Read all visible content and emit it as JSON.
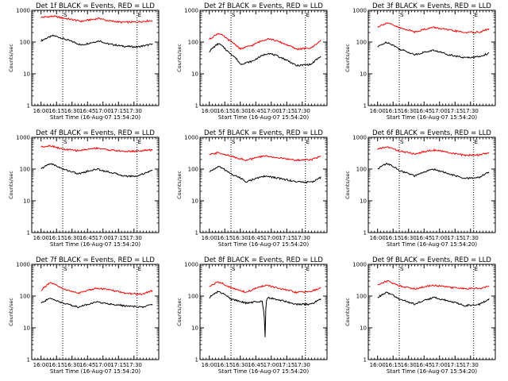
{
  "colors": {
    "events": "#000000",
    "lld": "#ff0000",
    "axes": "#000000",
    "background": "#ffffff"
  },
  "chart_data": [
    {
      "type": "line",
      "title": "Det 1f BLACK = Events, RED = LLD",
      "xlabel": "Start Time (16-Aug-07 15:54:20)",
      "ylabel": "Counts/sec",
      "y_scale": "log",
      "ylim": [
        1,
        1000
      ],
      "y_ticks": [
        "1",
        "10",
        "100",
        "1000"
      ],
      "x_ticks": [
        "16:00",
        "16:15",
        "16:30",
        "16:45",
        "17:00",
        "17:15",
        "17:30"
      ],
      "xlim": [
        -3,
        38
      ],
      "markers": [
        {
          "x": 7,
          "label": "S"
        },
        {
          "x": 31,
          "label": "E"
        }
      ],
      "series": [
        {
          "x": [
            0,
            4,
            8,
            13,
            19,
            21,
            26,
            31,
            36
          ],
          "y": [
            110,
            160,
            120,
            80,
            110,
            90,
            75,
            70,
            85
          ]
        },
        {
          "x": [
            0,
            4,
            8,
            13,
            19,
            21,
            26,
            31,
            36
          ],
          "y": [
            600,
            650,
            550,
            450,
            560,
            480,
            420,
            430,
            480
          ]
        }
      ]
    },
    {
      "type": "line",
      "title": "Det 2f BLACK = Events, RED = LLD",
      "xlabel": "Start Time (16-Aug-07 15:54:20)",
      "ylabel": "Counts/sec",
      "y_scale": "log",
      "ylim": [
        1,
        1000
      ],
      "y_ticks": [
        "1",
        "10",
        "100",
        "1000"
      ],
      "x_ticks": [
        "16:00",
        "16:15",
        "16:30",
        "16:45",
        "17:00",
        "17:15",
        "17:30"
      ],
      "xlim": [
        -3,
        38
      ],
      "markers": [
        {
          "x": 7,
          "label": "S"
        },
        {
          "x": 31,
          "label": "E"
        }
      ],
      "series": [
        {
          "x": [
            0,
            3,
            6,
            10,
            14,
            19,
            24,
            28,
            33,
            36
          ],
          "y": [
            50,
            90,
            50,
            20,
            25,
            45,
            30,
            18,
            20,
            35
          ]
        },
        {
          "x": [
            0,
            3,
            6,
            10,
            14,
            19,
            24,
            28,
            33,
            36
          ],
          "y": [
            120,
            190,
            120,
            60,
            80,
            130,
            90,
            60,
            65,
            110
          ]
        }
      ]
    },
    {
      "type": "line",
      "title": "Det 3f BLACK = Events, RED = LLD",
      "xlabel": "Start Time (16-Aug-07 15:54:20)",
      "ylabel": "Counts/sec",
      "y_scale": "log",
      "ylim": [
        1,
        1000
      ],
      "y_ticks": [
        "1",
        "10",
        "100",
        "1000"
      ],
      "x_ticks": [
        "16:00",
        "16:15",
        "16:30",
        "16:45",
        "17:00",
        "17:15",
        "17:30"
      ],
      "xlim": [
        -3,
        38
      ],
      "markers": [
        {
          "x": 7,
          "label": "S"
        },
        {
          "x": 31,
          "label": "E"
        }
      ],
      "series": [
        {
          "x": [
            0,
            3,
            7,
            12,
            18,
            23,
            28,
            33,
            36
          ],
          "y": [
            70,
            100,
            60,
            40,
            55,
            40,
            32,
            35,
            45
          ]
        },
        {
          "x": [
            0,
            3,
            7,
            12,
            18,
            23,
            28,
            33,
            36
          ],
          "y": [
            300,
            400,
            280,
            210,
            290,
            240,
            200,
            205,
            260
          ]
        }
      ]
    },
    {
      "type": "line",
      "title": "Det 4f BLACK = Events, RED = LLD",
      "xlabel": "Start Time (16-Aug-07 15:54:20)",
      "ylabel": "Counts/sec",
      "y_scale": "log",
      "ylim": [
        1,
        1000
      ],
      "y_ticks": [
        "1",
        "10",
        "100",
        "1000"
      ],
      "x_ticks": [
        "16:00",
        "16:15",
        "16:30",
        "16:45",
        "17:00",
        "17:15",
        "17:30"
      ],
      "xlim": [
        -3,
        38
      ],
      "markers": [
        {
          "x": 7,
          "label": "S"
        },
        {
          "x": 31,
          "label": "E"
        }
      ],
      "series": [
        {
          "x": [
            0,
            3,
            7,
            12,
            18,
            22,
            27,
            31,
            36
          ],
          "y": [
            100,
            150,
            100,
            70,
            100,
            80,
            60,
            60,
            90
          ]
        },
        {
          "x": [
            0,
            3,
            7,
            12,
            18,
            22,
            27,
            31,
            36
          ],
          "y": [
            500,
            550,
            420,
            380,
            460,
            400,
            360,
            370,
            400
          ]
        }
      ]
    },
    {
      "type": "line",
      "title": "Det 5f BLACK = Events, RED = LLD",
      "xlabel": "Start Time (16-Aug-07 15:54:20)",
      "ylabel": "Counts/sec",
      "y_scale": "log",
      "ylim": [
        1,
        1000
      ],
      "y_ticks": [
        "1",
        "10",
        "100",
        "1000"
      ],
      "x_ticks": [
        "16:00",
        "16:15",
        "16:30",
        "16:45",
        "17:00",
        "17:15",
        "17:30"
      ],
      "xlim": [
        -3,
        38
      ],
      "markers": [
        {
          "x": 7,
          "label": "S"
        },
        {
          "x": 31,
          "label": "E"
        }
      ],
      "series": [
        {
          "x": [
            0,
            3,
            7,
            12,
            18,
            23,
            28,
            33,
            36
          ],
          "y": [
            80,
            120,
            70,
            40,
            60,
            50,
            40,
            38,
            55
          ]
        },
        {
          "x": [
            0,
            3,
            7,
            12,
            18,
            23,
            28,
            33,
            36
          ],
          "y": [
            280,
            330,
            250,
            190,
            260,
            220,
            190,
            200,
            250
          ]
        }
      ]
    },
    {
      "type": "line",
      "title": "Det 6f BLACK = Events, RED = LLD",
      "xlabel": "Start Time (16-Aug-07 15:54:20)",
      "ylabel": "Counts/sec",
      "y_scale": "log",
      "ylim": [
        1,
        1000
      ],
      "y_ticks": [
        "1",
        "10",
        "100",
        "1000"
      ],
      "x_ticks": [
        "16:00",
        "16:15",
        "16:30",
        "16:45",
        "17:00",
        "17:15",
        "17:30"
      ],
      "xlim": [
        -3,
        38
      ],
      "markers": [
        {
          "x": 7,
          "label": "S"
        },
        {
          "x": 31,
          "label": "E"
        }
      ],
      "series": [
        {
          "x": [
            0,
            3,
            7,
            12,
            18,
            23,
            28,
            33,
            36
          ],
          "y": [
            100,
            150,
            90,
            60,
            100,
            70,
            50,
            55,
            80
          ]
        },
        {
          "x": [
            0,
            3,
            7,
            12,
            18,
            23,
            28,
            33,
            36
          ],
          "y": [
            420,
            500,
            370,
            300,
            400,
            330,
            270,
            280,
            330
          ]
        }
      ]
    },
    {
      "type": "line",
      "title": "Det 7f BLACK = Events, RED = LLD",
      "xlabel": "Start Time (16-Aug-07 15:54:20)",
      "ylabel": "Counts/sec",
      "y_scale": "log",
      "ylim": [
        1,
        1000
      ],
      "y_ticks": [
        "1",
        "10",
        "100",
        "1000"
      ],
      "x_ticks": [
        "16:00",
        "16:15",
        "16:30",
        "16:45",
        "17:00",
        "17:15",
        "17:30"
      ],
      "xlim": [
        -3,
        38
      ],
      "markers": [
        {
          "x": 7,
          "label": "S"
        },
        {
          "x": 31,
          "label": "E"
        }
      ],
      "series": [
        {
          "x": [
            0,
            3,
            7,
            12,
            18,
            23,
            28,
            33,
            36
          ],
          "y": [
            60,
            85,
            60,
            45,
            65,
            55,
            48,
            45,
            55
          ]
        },
        {
          "x": [
            0,
            3,
            7,
            12,
            18,
            23,
            28,
            33,
            36
          ],
          "y": [
            150,
            260,
            170,
            120,
            180,
            150,
            120,
            115,
            150
          ]
        }
      ]
    },
    {
      "type": "line",
      "title": "Det 8f BLACK = Events, RED = LLD",
      "xlabel": "Start Time (16-Aug-07 15:54:20)",
      "ylabel": "Counts/sec",
      "y_scale": "log",
      "ylim": [
        1,
        1000
      ],
      "y_ticks": [
        "1",
        "10",
        "100",
        "1000"
      ],
      "x_ticks": [
        "16:00",
        "16:15",
        "16:30",
        "16:45",
        "17:00",
        "17:15",
        "17:30"
      ],
      "xlim": [
        -3,
        38
      ],
      "markers": [
        {
          "x": 7,
          "label": "S"
        },
        {
          "x": 31,
          "label": "E"
        }
      ],
      "series": [
        {
          "x": [
            0,
            3,
            7,
            12,
            17,
            18,
            18.5,
            19,
            24,
            28,
            33,
            36
          ],
          "y": [
            90,
            140,
            80,
            60,
            70,
            5,
            80,
            90,
            70,
            55,
            55,
            80
          ]
        },
        {
          "x": [
            0,
            3,
            7,
            12,
            18,
            23,
            28,
            33,
            36
          ],
          "y": [
            200,
            280,
            180,
            130,
            220,
            170,
            130,
            140,
            180
          ]
        }
      ]
    },
    {
      "type": "line",
      "title": "Det 9f BLACK = Events, RED = LLD",
      "xlabel": "Start Time (16-Aug-07 15:54:20)",
      "ylabel": "Counts/sec",
      "y_scale": "log",
      "ylim": [
        1,
        1000
      ],
      "y_ticks": [
        "1",
        "10",
        "100",
        "1000"
      ],
      "x_ticks": [
        "16:00",
        "16:15",
        "16:30",
        "16:45",
        "17:00",
        "17:15",
        "17:30"
      ],
      "xlim": [
        -3,
        38
      ],
      "markers": [
        {
          "x": 7,
          "label": "S"
        },
        {
          "x": 31,
          "label": "E"
        }
      ],
      "series": [
        {
          "x": [
            0,
            3,
            7,
            12,
            18,
            23,
            28,
            33,
            36
          ],
          "y": [
            90,
            130,
            80,
            55,
            90,
            70,
            50,
            55,
            80
          ]
        },
        {
          "x": [
            0,
            3,
            7,
            12,
            18,
            23,
            28,
            33,
            36
          ],
          "y": [
            220,
            300,
            210,
            170,
            220,
            190,
            170,
            175,
            200
          ]
        }
      ]
    }
  ]
}
